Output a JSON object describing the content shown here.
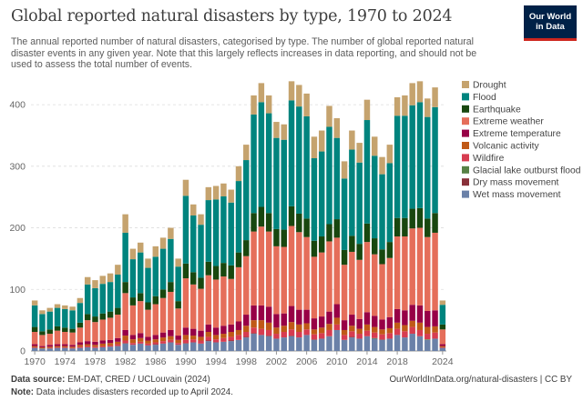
{
  "header": {
    "title": "Global reported natural disasters by type, 1970 to 2024",
    "subtitle": "The annual reported number of natural disasters, categorised by type. The number of global reported natural disaster events in any given year. Note that this largely reflects increases in data reporting, and should not be used to assess the total number of events.",
    "logo_line1": "Our World",
    "logo_line2": "in Data"
  },
  "footer": {
    "source_label": "Data source:",
    "source_text": "EM-DAT, CRED / UCLouvain (2024)",
    "note_label": "Note:",
    "note_text": "Data includes disasters recorded up to April 2024.",
    "url": "OurWorldInData.org/natural-disasters | CC BY"
  },
  "chart_data": {
    "type": "bar",
    "stacked": true,
    "title": "Global reported natural disasters by type, 1970 to 2024",
    "xlabel": "",
    "ylabel": "",
    "ylim": [
      0,
      440
    ],
    "yticks": [
      0,
      100,
      200,
      300,
      400
    ],
    "xtick_labels": [
      "1970",
      "1974",
      "1978",
      "1982",
      "1986",
      "1990",
      "1994",
      "1998",
      "2002",
      "2006",
      "2010",
      "2014",
      "2018",
      "2024"
    ],
    "grid": true,
    "legend_position": "right",
    "categories": [
      "1970",
      "1971",
      "1972",
      "1973",
      "1974",
      "1975",
      "1976",
      "1977",
      "1978",
      "1979",
      "1980",
      "1981",
      "1982",
      "1983",
      "1984",
      "1985",
      "1986",
      "1987",
      "1988",
      "1989",
      "1990",
      "1991",
      "1992",
      "1993",
      "1994",
      "1995",
      "1996",
      "1997",
      "1998",
      "1999",
      "2000",
      "2001",
      "2002",
      "2003",
      "2004",
      "2005",
      "2006",
      "2007",
      "2008",
      "2009",
      "2010",
      "2011",
      "2012",
      "2013",
      "2014",
      "2015",
      "2016",
      "2017",
      "2018",
      "2019",
      "2020",
      "2021",
      "2022",
      "2023",
      "2024"
    ],
    "totals": [
      82,
      66,
      70,
      76,
      74,
      72,
      86,
      120,
      115,
      122,
      126,
      140,
      222,
      166,
      176,
      150,
      170,
      184,
      200,
      150,
      278,
      238,
      222,
      266,
      268,
      272,
      262,
      300,
      335,
      415,
      435,
      415,
      372,
      368,
      438,
      432,
      418,
      348,
      358,
      398,
      378,
      308,
      358,
      338,
      408,
      348,
      315,
      335,
      412,
      415,
      435,
      438,
      410,
      428,
      82
    ],
    "series": [
      {
        "name": "Wet mass movement",
        "color": "#6b81a8",
        "values": [
          5,
          4,
          4,
          5,
          5,
          4,
          5,
          6,
          5,
          6,
          7,
          8,
          12,
          10,
          12,
          9,
          10,
          12,
          14,
          10,
          12,
          14,
          12,
          16,
          14,
          15,
          16,
          18,
          22,
          28,
          26,
          24,
          20,
          22,
          24,
          22,
          26,
          18,
          20,
          24,
          34,
          18,
          22,
          20,
          24,
          20,
          18,
          20,
          26,
          22,
          28,
          24,
          18,
          20,
          5
        ]
      },
      {
        "name": "Dry mass movement",
        "color": "#883039",
        "values": [
          0,
          0,
          0,
          0,
          0,
          0,
          0,
          0,
          0,
          0,
          0,
          0,
          1,
          0,
          0,
          0,
          1,
          0,
          0,
          0,
          1,
          0,
          0,
          1,
          0,
          0,
          1,
          0,
          1,
          1,
          0,
          1,
          0,
          0,
          1,
          0,
          0,
          1,
          0,
          0,
          0,
          0,
          1,
          0,
          0,
          0,
          1,
          0,
          0,
          0,
          0,
          0,
          0,
          0,
          0
        ]
      },
      {
        "name": "Glacial lake outburst flood",
        "color": "#578145",
        "values": [
          0,
          0,
          0,
          0,
          0,
          0,
          0,
          0,
          0,
          0,
          0,
          0,
          0,
          0,
          0,
          0,
          0,
          0,
          0,
          0,
          0,
          0,
          0,
          0,
          0,
          0,
          0,
          0,
          0,
          0,
          0,
          0,
          0,
          0,
          0,
          0,
          0,
          0,
          0,
          0,
          0,
          0,
          0,
          0,
          0,
          1,
          0,
          0,
          0,
          0,
          0,
          0,
          1,
          0,
          0
        ]
      },
      {
        "name": "Wildfire",
        "color": "#d73c50",
        "values": [
          1,
          0,
          1,
          1,
          1,
          1,
          2,
          2,
          2,
          2,
          2,
          3,
          4,
          3,
          3,
          3,
          3,
          4,
          4,
          3,
          5,
          5,
          5,
          6,
          5,
          6,
          6,
          8,
          8,
          9,
          10,
          9,
          8,
          9,
          10,
          9,
          9,
          8,
          9,
          10,
          9,
          8,
          9,
          8,
          9,
          9,
          8,
          9,
          10,
          10,
          11,
          10,
          9,
          10,
          1
        ]
      },
      {
        "name": "Volcanic activity",
        "color": "#c05917",
        "values": [
          2,
          2,
          2,
          2,
          2,
          2,
          3,
          3,
          3,
          4,
          4,
          4,
          8,
          6,
          6,
          5,
          5,
          6,
          6,
          5,
          8,
          6,
          6,
          8,
          7,
          7,
          8,
          8,
          10,
          12,
          14,
          12,
          10,
          10,
          12,
          12,
          10,
          8,
          9,
          10,
          11,
          8,
          9,
          8,
          10,
          9,
          8,
          8,
          10,
          10,
          10,
          12,
          11,
          10,
          2
        ]
      },
      {
        "name": "Extreme temperature",
        "color": "#970046",
        "values": [
          3,
          2,
          3,
          3,
          3,
          3,
          4,
          5,
          5,
          5,
          5,
          6,
          9,
          7,
          8,
          6,
          7,
          8,
          10,
          7,
          12,
          11,
          10,
          12,
          12,
          13,
          12,
          14,
          18,
          24,
          24,
          26,
          22,
          20,
          26,
          24,
          22,
          18,
          18,
          20,
          22,
          16,
          18,
          16,
          20,
          18,
          16,
          18,
          22,
          24,
          26,
          28,
          26,
          26,
          3
        ]
      },
      {
        "name": "Extreme weather",
        "color": "#e56e5a",
        "values": [
          20,
          18,
          18,
          22,
          20,
          20,
          24,
          34,
          32,
          34,
          36,
          38,
          60,
          48,
          52,
          44,
          50,
          56,
          62,
          44,
          80,
          72,
          68,
          80,
          78,
          80,
          74,
          88,
          95,
          120,
          128,
          122,
          110,
          108,
          130,
          126,
          118,
          100,
          104,
          114,
          108,
          90,
          102,
          96,
          114,
          100,
          90,
          96,
          118,
          120,
          124,
          126,
          120,
          126,
          24
        ]
      },
      {
        "name": "Earthquake",
        "color": "#18470f",
        "values": [
          8,
          6,
          7,
          7,
          7,
          6,
          8,
          10,
          9,
          10,
          10,
          11,
          18,
          13,
          13,
          12,
          13,
          14,
          16,
          12,
          24,
          20,
          18,
          22,
          22,
          22,
          22,
          24,
          26,
          30,
          32,
          30,
          28,
          28,
          32,
          30,
          30,
          26,
          26,
          28,
          30,
          24,
          26,
          26,
          30,
          26,
          24,
          26,
          30,
          30,
          32,
          32,
          30,
          32,
          8
        ]
      },
      {
        "name": "Flood",
        "color": "#00847e",
        "values": [
          35,
          28,
          29,
          30,
          30,
          30,
          32,
          48,
          46,
          48,
          48,
          54,
          80,
          62,
          66,
          56,
          64,
          66,
          70,
          56,
          110,
          92,
          86,
          100,
          108,
          108,
          102,
          116,
          130,
          160,
          170,
          162,
          148,
          146,
          172,
          174,
          166,
          134,
          138,
          158,
          132,
          116,
          140,
          132,
          168,
          134,
          122,
          128,
          166,
          166,
          168,
          172,
          165,
          172,
          32
        ]
      },
      {
        "name": "Drought",
        "color": "#c5a36e",
        "values": [
          8,
          6,
          6,
          6,
          6,
          6,
          8,
          12,
          13,
          13,
          14,
          16,
          30,
          17,
          16,
          15,
          17,
          18,
          18,
          13,
          26,
          18,
          17,
          21,
          22,
          21,
          21,
          24,
          25,
          31,
          31,
          29,
          26,
          25,
          31,
          35,
          37,
          35,
          34,
          34,
          32,
          28,
          31,
          32,
          33,
          31,
          28,
          30,
          30,
          33,
          36,
          34,
          30,
          32,
          7
        ]
      }
    ]
  }
}
